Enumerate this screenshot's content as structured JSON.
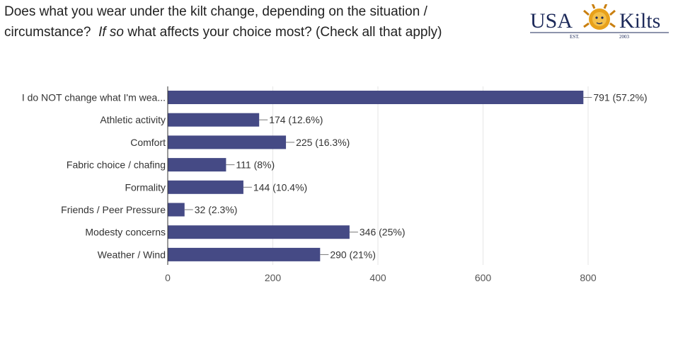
{
  "question": {
    "part1": "Does what you wear under the kilt change, depending on the situation / circumstance?",
    "part2": "If so",
    "part3": "what affects your choice most? (Check all that apply)"
  },
  "logo": {
    "left_text": "USA",
    "right_text": "Kilts",
    "est_text": "EST.",
    "year_text": "2003",
    "colors": {
      "text": "#1d2a5a",
      "lion": "#e8a11a"
    }
  },
  "chart_data": {
    "type": "bar",
    "orientation": "horizontal",
    "categories": [
      "I do NOT change what I'm wea...",
      "Athletic activity",
      "Comfort",
      "Fabric choice / chafing",
      "Formality",
      "Friends / Peer Pressure",
      "Modesty concerns",
      "Weather / Wind"
    ],
    "values": [
      791,
      174,
      225,
      111,
      144,
      32,
      346,
      290
    ],
    "value_labels": [
      "791 (57.2%)",
      "174 (12.6%)",
      "225 (16.3%)",
      "111 (8%)",
      "144 (10.4%)",
      "32 (2.3%)",
      "346 (25%)",
      "290 (21%)"
    ],
    "xlim": [
      0,
      800
    ],
    "xticks": [
      0,
      200,
      400,
      600,
      800
    ],
    "xtick_labels": [
      "0",
      "200",
      "400",
      "600",
      "800"
    ],
    "grid": true,
    "bar_color": "#454a85",
    "title": "",
    "xlabel": "",
    "ylabel": ""
  }
}
